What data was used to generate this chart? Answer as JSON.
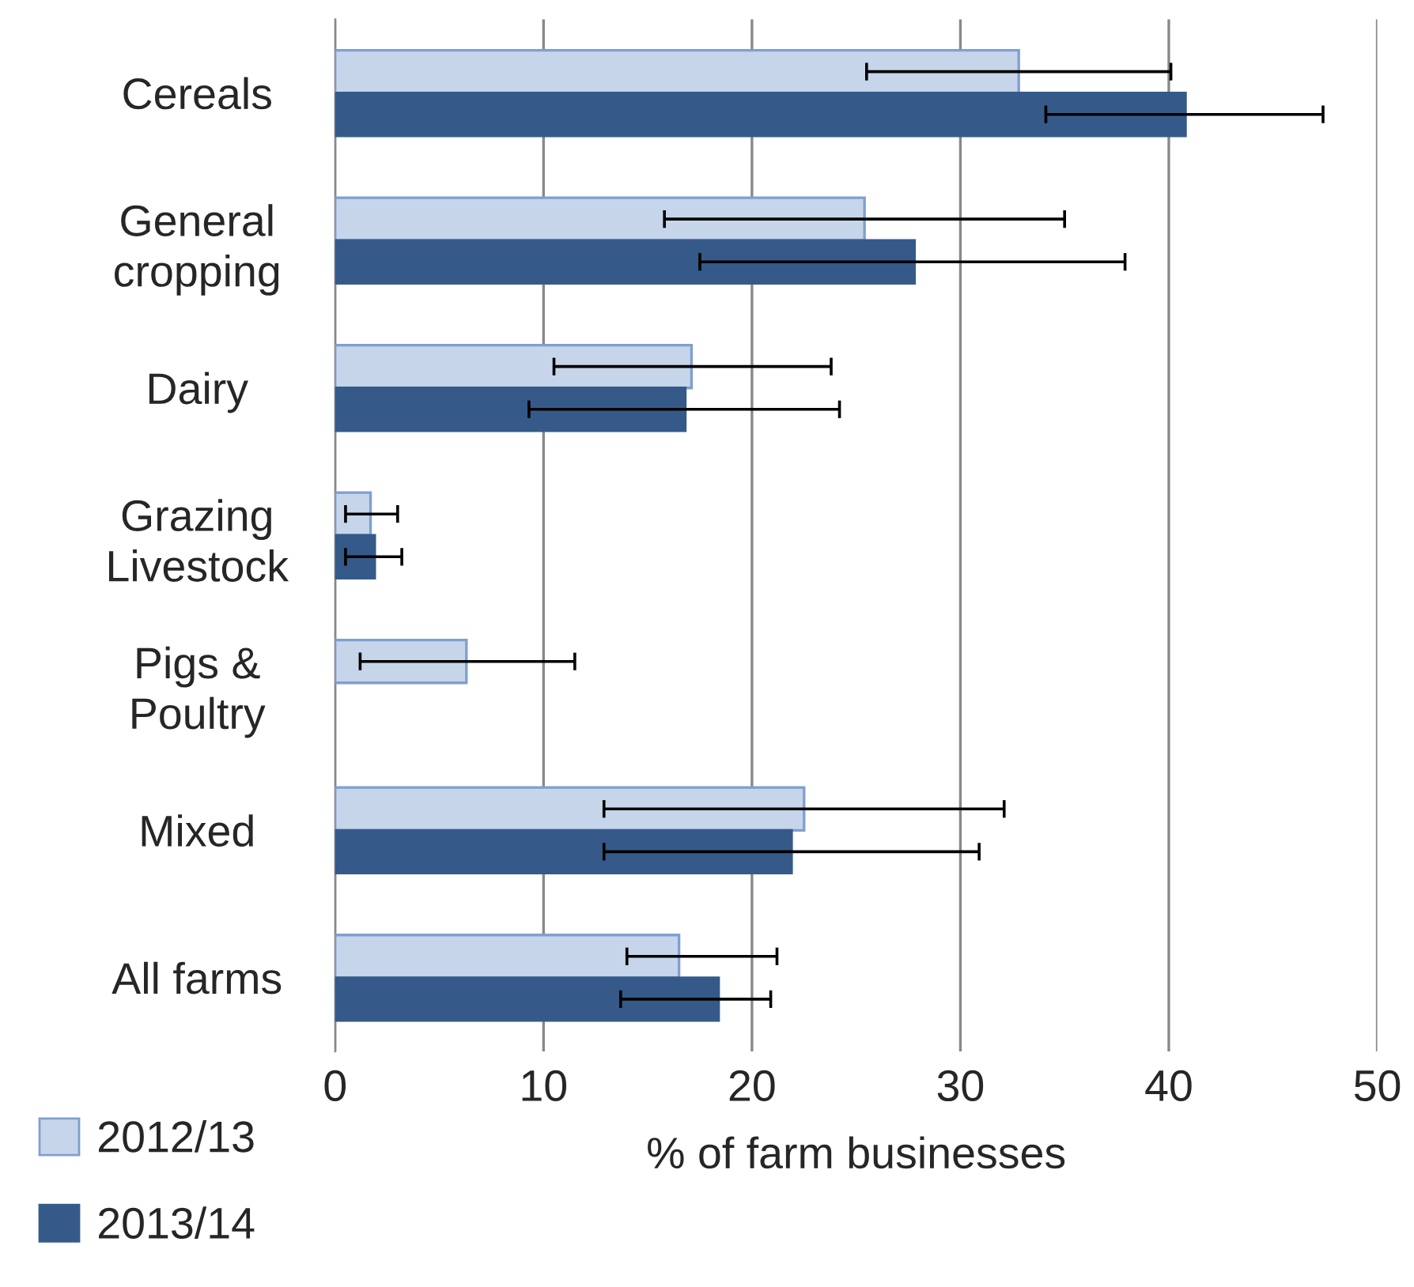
{
  "chart_data": {
    "type": "bar",
    "orientation": "horizontal",
    "xlabel": "% of farm businesses",
    "categories": [
      "Cereals",
      "General\ncropping",
      "Dairy",
      "Grazing\nLivestock",
      "Pigs &\nPoultry",
      "Mixed",
      "All farms"
    ],
    "series": [
      {
        "name": "2012/13",
        "color": "#c6d5ea",
        "values": [
          32.8,
          25.4,
          17.1,
          1.7,
          6.3,
          22.5,
          16.5
        ],
        "errors": [
          [
            25.5,
            40.1
          ],
          [
            15.8,
            35.0
          ],
          [
            10.5,
            23.8
          ],
          [
            0.5,
            3.0
          ],
          [
            1.2,
            11.5
          ],
          [
            12.9,
            32.1
          ],
          [
            14.0,
            21.2
          ]
        ]
      },
      {
        "name": "2013/14",
        "color": "#355a8a",
        "values": [
          40.8,
          27.8,
          16.8,
          1.9,
          null,
          21.9,
          18.4
        ],
        "errors": [
          [
            34.1,
            47.4
          ],
          [
            17.5,
            37.9
          ],
          [
            9.3,
            24.2
          ],
          [
            0.5,
            3.2
          ],
          null,
          [
            12.9,
            30.9
          ],
          [
            13.7,
            20.9
          ]
        ]
      }
    ],
    "xlim": [
      0,
      50
    ],
    "xticks": [
      0,
      10,
      20,
      30,
      40,
      50
    ],
    "grid": "x",
    "legend": "bottom left"
  }
}
